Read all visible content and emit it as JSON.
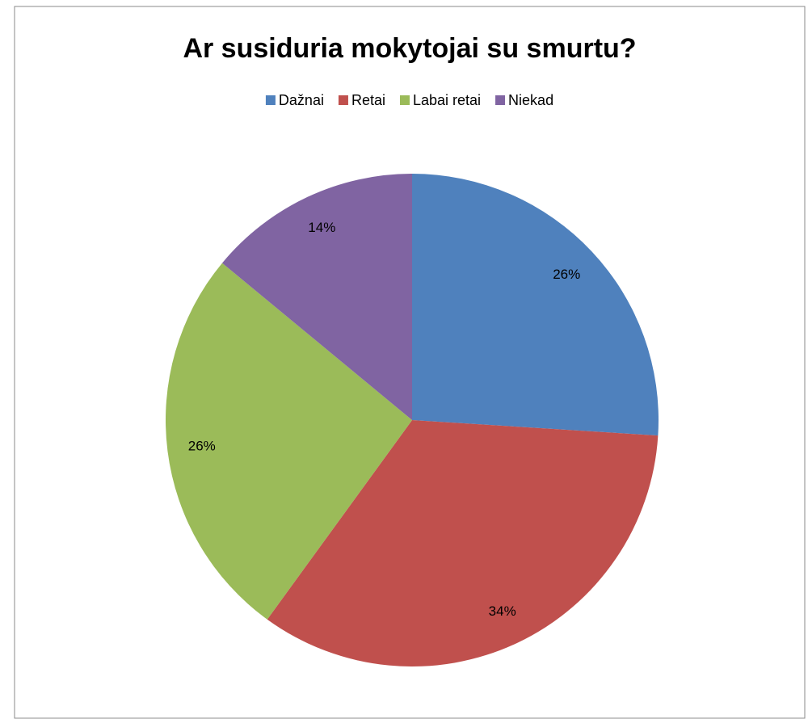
{
  "chart_data": {
    "type": "pie",
    "title": "Ar susiduria mokytojai su smurtu?",
    "categories": [
      "Dažnai",
      "Retai",
      "Labai retai",
      "Niekad"
    ],
    "values": [
      26,
      34,
      26,
      14
    ],
    "value_labels": [
      "26%",
      "34%",
      "26%",
      "14%"
    ],
    "colors": [
      "#4f81bd",
      "#c0504d",
      "#9bbb59",
      "#8064a2"
    ],
    "legend": "top"
  }
}
